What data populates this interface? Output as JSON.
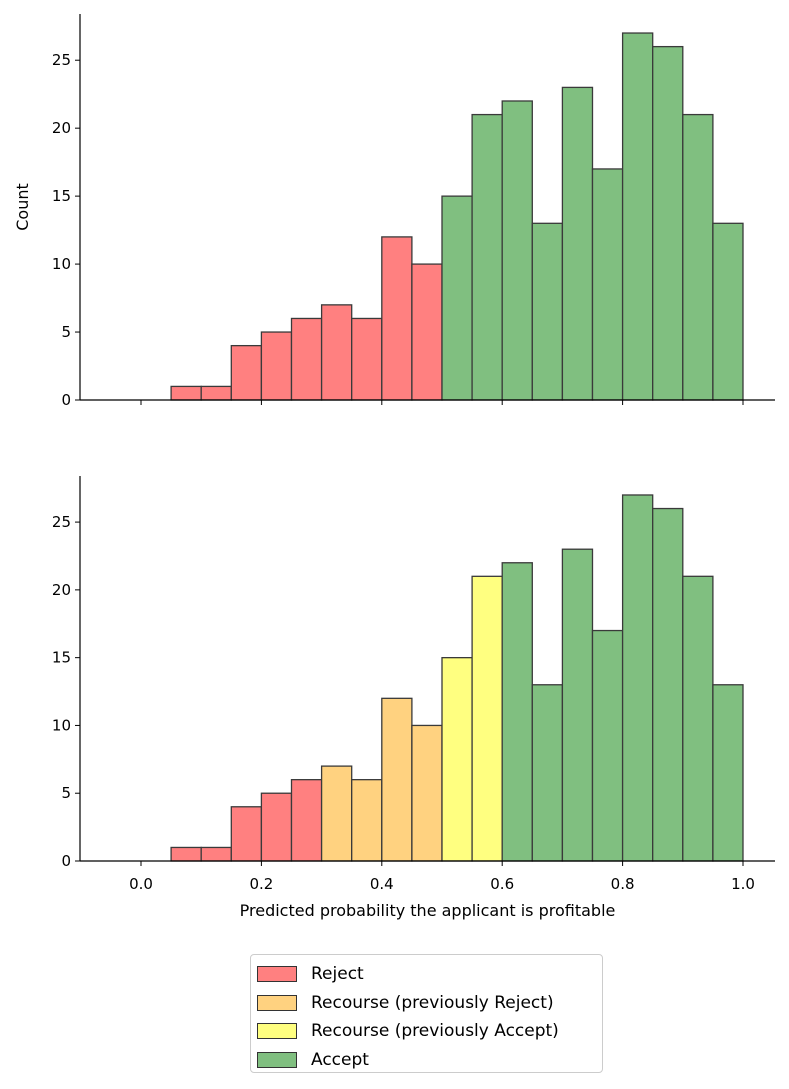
{
  "chart_data": [
    {
      "type": "bar",
      "panel": "top",
      "bin_edges": [
        0.05,
        0.1,
        0.15,
        0.2,
        0.25,
        0.3,
        0.35,
        0.4,
        0.45,
        0.5,
        0.55,
        0.6,
        0.65,
        0.7,
        0.75,
        0.8,
        0.85,
        0.9,
        0.95,
        1.0
      ],
      "values": [
        1,
        1,
        4,
        5,
        6,
        7,
        6,
        12,
        10,
        15,
        21,
        22,
        13,
        23,
        17,
        27,
        26,
        21,
        13
      ],
      "categories": [
        "Reject",
        "Reject",
        "Reject",
        "Reject",
        "Reject",
        "Reject",
        "Reject",
        "Reject",
        "Reject",
        "Accept",
        "Accept",
        "Accept",
        "Accept",
        "Accept",
        "Accept",
        "Accept",
        "Accept",
        "Accept",
        "Accept"
      ],
      "ylabel": "Count",
      "xlabel": "",
      "xlim": [
        -0.06,
        1.06
      ],
      "ylim": [
        0,
        28.4
      ],
      "yticks": [
        {
          "value": 0,
          "label": "0"
        },
        {
          "value": 5,
          "label": "5"
        },
        {
          "value": 10,
          "label": "10"
        },
        {
          "value": 15,
          "label": "15"
        },
        {
          "value": 20,
          "label": "20"
        },
        {
          "value": 25,
          "label": "25"
        }
      ],
      "xticks": [
        0.0,
        0.2,
        0.4,
        0.6,
        0.8,
        1.0
      ],
      "show_xtick_labels": false,
      "grid": false
    },
    {
      "type": "bar",
      "panel": "bottom",
      "bin_edges": [
        -0.05,
        0.0,
        0.05,
        0.1,
        0.15,
        0.2,
        0.25,
        0.3,
        0.35,
        0.4,
        0.45,
        0.5,
        0.55,
        0.6,
        0.65,
        0.7,
        0.75,
        0.8,
        0.85,
        0.9,
        0.95,
        1.0
      ],
      "values": [
        0,
        0,
        1,
        1,
        4,
        5,
        6,
        7,
        6,
        12,
        10,
        15,
        21,
        22,
        13,
        23,
        17,
        27,
        26,
        21,
        13
      ],
      "categories": [
        "Reject",
        "Reject",
        "Reject",
        "Reject",
        "Reject",
        "Reject",
        "Reject",
        "Recourse (previously Reject)",
        "Recourse (previously Reject)",
        "Recourse (previously Reject)",
        "Recourse (previously Reject)",
        "Recourse (previously Accept)",
        "Recourse (previously Accept)",
        "Accept",
        "Accept",
        "Accept",
        "Accept",
        "Accept",
        "Accept",
        "Accept",
        "Accept"
      ],
      "ylabel": "",
      "xlabel": "Predicted probability the applicant is profitable",
      "xlim": [
        -0.06,
        1.06
      ],
      "ylim": [
        0,
        28.4
      ],
      "yticks": [
        {
          "value": 0,
          "label": "0"
        },
        {
          "value": 5,
          "label": "5"
        },
        {
          "value": 10,
          "label": "10"
        },
        {
          "value": 15,
          "label": "15"
        },
        {
          "value": 20,
          "label": "20"
        },
        {
          "value": 25,
          "label": "25"
        }
      ],
      "xticks": [
        {
          "value": 0.0,
          "label": "0.0"
        },
        {
          "value": 0.2,
          "label": "0.2"
        },
        {
          "value": 0.4,
          "label": "0.4"
        },
        {
          "value": 0.6,
          "label": "0.6"
        },
        {
          "value": 0.8,
          "label": "0.8"
        },
        {
          "value": 1.0,
          "label": "1.0"
        }
      ],
      "show_xtick_labels": true,
      "grid": false
    }
  ],
  "legend": {
    "placement": "bottom-center",
    "items": [
      {
        "label": "Reject",
        "color": "#ff8080"
      },
      {
        "label": "Recourse (previously Reject)",
        "color": "#ffd280"
      },
      {
        "label": "Recourse (previously Accept)",
        "color": "#ffff80"
      },
      {
        "label": "Accept",
        "color": "#80bf80"
      }
    ]
  },
  "colors": {
    "Reject": "#ff8080",
    "Recourse (previously Reject)": "#ffd280",
    "Recourse (previously Accept)": "#ffff80",
    "Accept": "#80bf80",
    "bar_edge": "#3a3a3a",
    "axis": "#000000"
  }
}
